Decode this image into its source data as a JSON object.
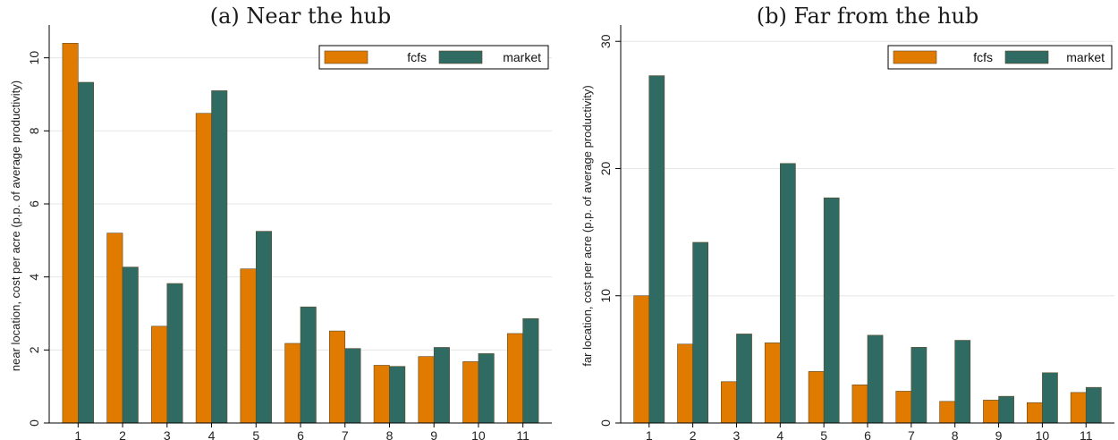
{
  "chart_data": [
    {
      "type": "bar",
      "title": "(a) Near the hub",
      "ylabel": "near location, cost per acre (p.p. of average productivity)",
      "xlabel": "",
      "categories": [
        "1",
        "2",
        "3",
        "4",
        "5",
        "6",
        "7",
        "8",
        "9",
        "10",
        "11"
      ],
      "ylim": [
        0,
        10.8
      ],
      "yticks": [
        0,
        2,
        4,
        6,
        8,
        10
      ],
      "grid": true,
      "legend_position": "top-right",
      "series": [
        {
          "name": "fcfs",
          "color": "#e07b00",
          "values": [
            10.4,
            5.2,
            2.65,
            8.48,
            4.22,
            2.18,
            2.52,
            1.58,
            1.82,
            1.68,
            2.45
          ]
        },
        {
          "name": "market",
          "color": "#2f6b63",
          "values": [
            9.33,
            4.27,
            3.82,
            9.1,
            5.25,
            3.18,
            2.04,
            1.55,
            2.07,
            1.9,
            2.86
          ]
        }
      ]
    },
    {
      "type": "bar",
      "title": "(b) Far from the hub",
      "ylabel": "far location, cost per acre (p.p. of average productivity)",
      "xlabel": "",
      "categories": [
        "1",
        "2",
        "3",
        "4",
        "5",
        "6",
        "7",
        "8",
        "9",
        "10",
        "11"
      ],
      "ylim": [
        0,
        31
      ],
      "yticks": [
        0,
        10,
        20,
        30
      ],
      "grid": true,
      "legend_position": "top-right",
      "series": [
        {
          "name": "fcfs",
          "color": "#e07b00",
          "values": [
            10.0,
            6.2,
            3.25,
            6.3,
            4.05,
            3.0,
            2.5,
            1.7,
            1.8,
            1.6,
            2.4
          ]
        },
        {
          "name": "market",
          "color": "#2f6b63",
          "values": [
            27.3,
            14.2,
            7.0,
            20.4,
            17.7,
            6.9,
            5.95,
            6.5,
            2.1,
            3.95,
            2.8
          ]
        }
      ]
    }
  ]
}
